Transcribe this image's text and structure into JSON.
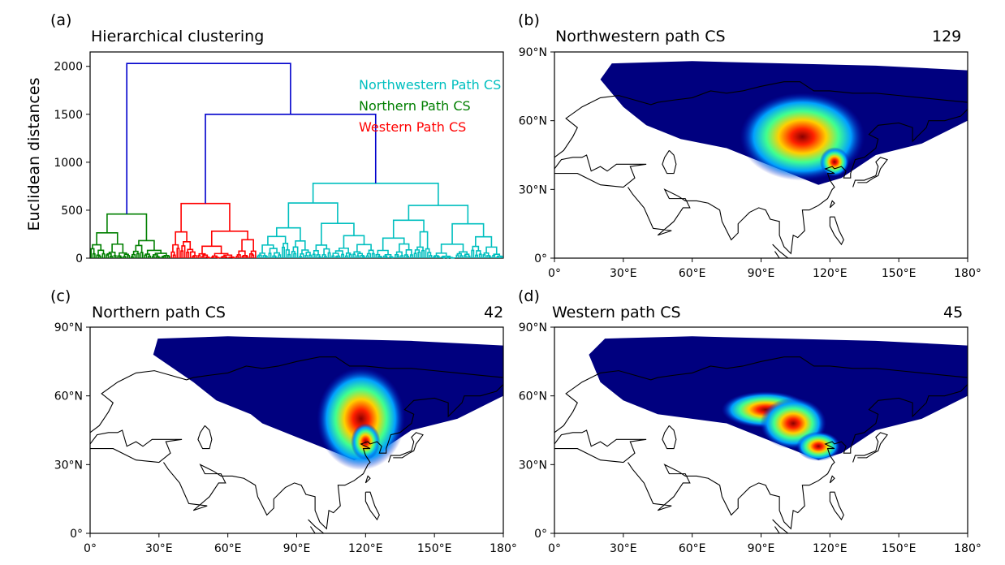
{
  "panels": {
    "a": {
      "letter": "(a)",
      "title": "Hierarchical clustering",
      "count": ""
    },
    "b": {
      "letter": "(b)",
      "title": "Northwestern path CS",
      "count": "129"
    },
    "c": {
      "letter": "(c)",
      "title": "Northern path CS",
      "count": "42"
    },
    "d": {
      "letter": "(d)",
      "title": "Western path CS",
      "count": "45"
    }
  },
  "colors": {
    "top_links": "#0000cc",
    "northwestern": "#00bfbf",
    "northern": "#007f00",
    "western": "#ff0000",
    "density_low": "#00007f",
    "density_high": "#7f0000"
  },
  "chart_data": [
    {
      "panel": "a",
      "type": "dendrogram",
      "title": "Hierarchical clustering",
      "ylabel": "Euclidean distances",
      "ylim": [
        0,
        2150
      ],
      "yticks": [
        0,
        500,
        1000,
        1500,
        2000
      ],
      "legend": [
        {
          "label": "Northwestern Path CS",
          "color": "#00bfbf"
        },
        {
          "label": "Northern Path CS",
          "color": "#007f00"
        },
        {
          "label": "Western Path CS",
          "color": "#ff0000"
        }
      ],
      "legend_position": "top-right",
      "clusters": [
        {
          "name": "Northern Path CS",
          "leaves": 42,
          "merge_height": 460,
          "color": "#007f00"
        },
        {
          "name": "Western Path CS",
          "leaves": 45,
          "merge_height": 570,
          "color": "#ff0000"
        },
        {
          "name": "Northwestern Path CS",
          "leaves": 129,
          "merge_height": 780,
          "color": "#00bfbf"
        }
      ],
      "top_merges": [
        {
          "children": [
            "Western Path CS",
            "Northwestern Path CS"
          ],
          "height": 1500
        },
        {
          "children": [
            "Northern Path CS",
            "Western+Northwestern"
          ],
          "height": 2030
        }
      ]
    },
    {
      "panel": "b",
      "type": "heatmap",
      "title": "Northwestern path CS",
      "count": "129",
      "xlim": [
        0,
        180
      ],
      "ylim": [
        0,
        90
      ],
      "xticks": [
        "0°",
        "30°E",
        "60°E",
        "90°E",
        "120°E",
        "150°E",
        "180°"
      ],
      "yticks": [
        "0°",
        "30°N",
        "60°N",
        "90°N"
      ]
    },
    {
      "panel": "c",
      "type": "heatmap",
      "title": "Northern path CS",
      "count": "42",
      "xlim": [
        0,
        180
      ],
      "ylim": [
        0,
        90
      ],
      "xticks": [
        "0°",
        "30°E",
        "60°E",
        "90°E",
        "120°E",
        "150°E",
        "180°"
      ],
      "yticks": [
        "0°",
        "30°N",
        "60°N",
        "90°N"
      ]
    },
    {
      "panel": "d",
      "type": "heatmap",
      "title": "Western path CS",
      "count": "45",
      "xlim": [
        0,
        180
      ],
      "ylim": [
        0,
        90
      ],
      "xticks": [
        "0°",
        "30°E",
        "60°E",
        "90°E",
        "120°E",
        "150°E",
        "180°"
      ],
      "yticks": [
        "0°",
        "30°N",
        "60°N",
        "90°N"
      ]
    }
  ]
}
